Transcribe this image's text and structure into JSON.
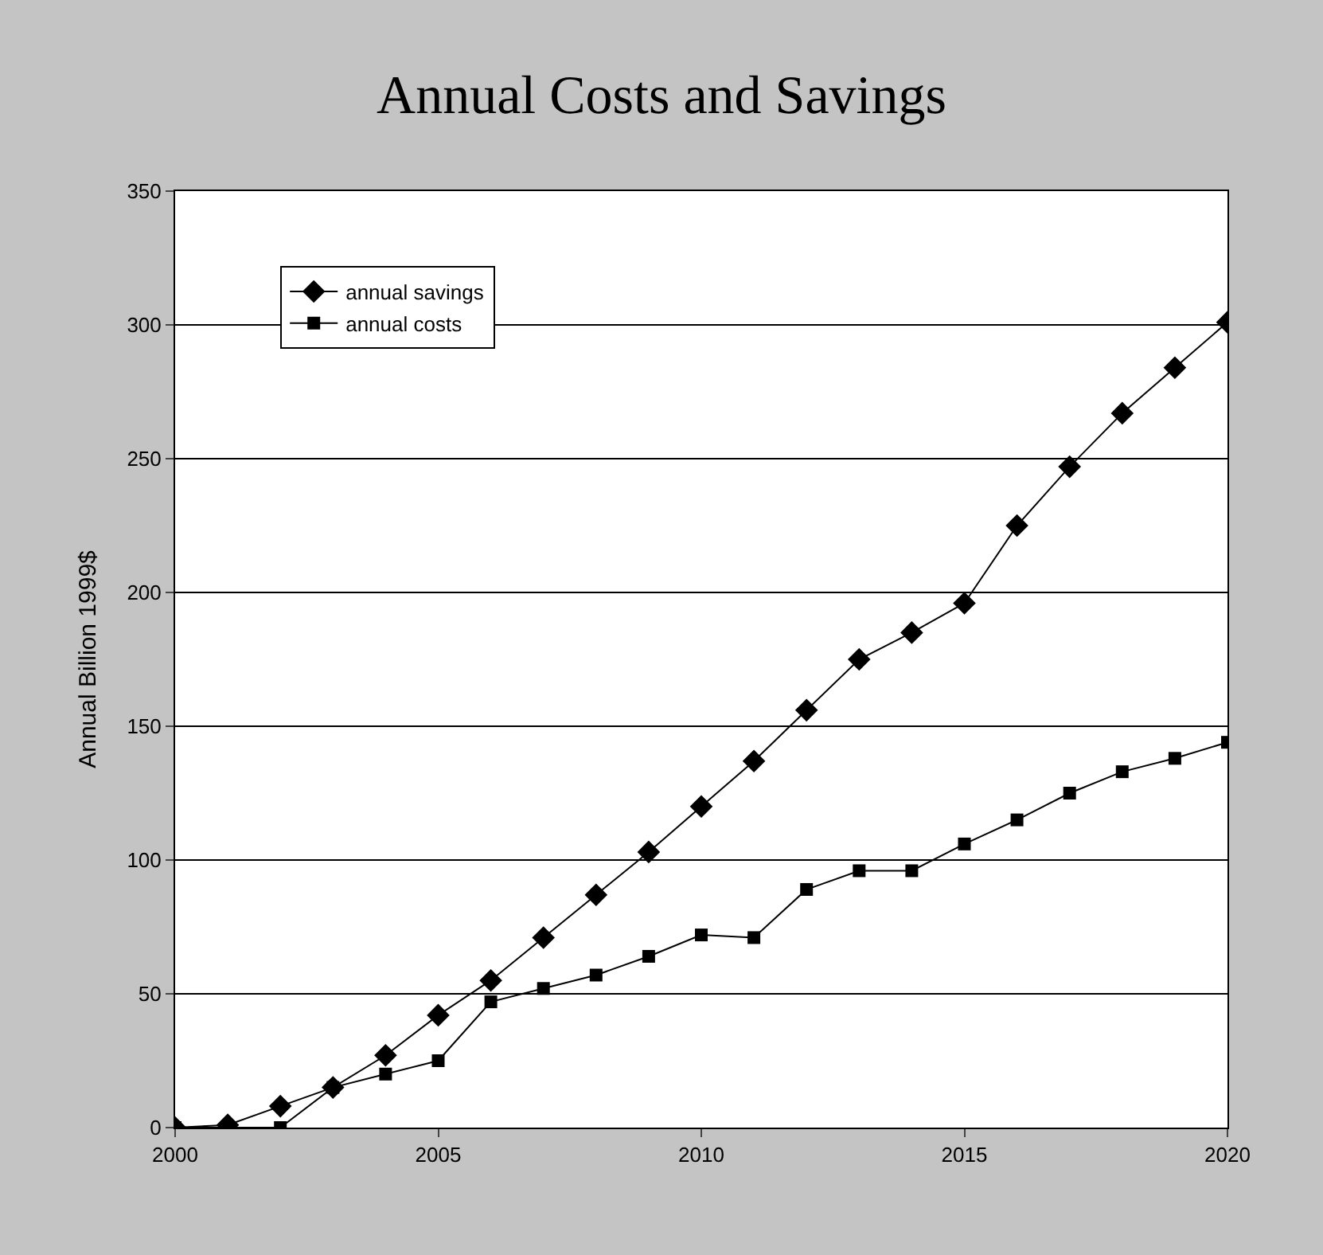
{
  "chart_data": {
    "type": "line",
    "title": "Annual Costs and Savings",
    "ylabel": "Annual Billion 1999$",
    "x": [
      2000,
      2001,
      2002,
      2003,
      2004,
      2005,
      2006,
      2007,
      2008,
      2009,
      2010,
      2011,
      2012,
      2013,
      2014,
      2015,
      2016,
      2017,
      2018,
      2019,
      2020
    ],
    "series": [
      {
        "name": "annual savings",
        "color": "#000000",
        "marker": "diamond",
        "values": [
          0,
          1,
          8,
          15,
          27,
          42,
          55,
          71,
          87,
          103,
          120,
          137,
          156,
          175,
          185,
          196,
          225,
          247,
          267,
          284,
          301
        ]
      },
      {
        "name": "annual costs",
        "color": "#000000",
        "marker": "square",
        "values": [
          0,
          0,
          0,
          15,
          20,
          25,
          47,
          52,
          57,
          64,
          72,
          71,
          89,
          96,
          96,
          106,
          115,
          125,
          133,
          138,
          144
        ]
      }
    ],
    "xlim": [
      2000,
      2020
    ],
    "xticks": [
      2000,
      2005,
      2010,
      2015,
      2020
    ],
    "ylim": [
      0,
      350
    ],
    "yticks": [
      0,
      50,
      100,
      150,
      200,
      250,
      300,
      350
    ],
    "grid": "y",
    "legend": "top left",
    "line_style": "solid"
  }
}
